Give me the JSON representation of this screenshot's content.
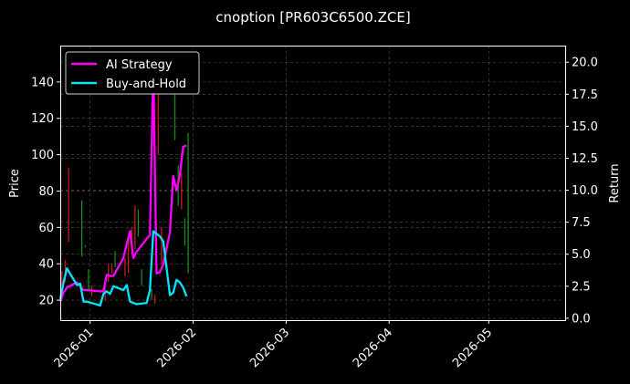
{
  "chart_data": {
    "type": "line",
    "title": "cnoption [PR603C6500.ZCE]",
    "xlabel": "",
    "ylabel_left": "Price",
    "ylabel_right": "Return",
    "x_type": "date",
    "x_range": [
      "2025-12-23",
      "2026-05-24"
    ],
    "x_ticks": [
      "2026-01",
      "2026-02",
      "2026-03",
      "2026-04",
      "2026-05"
    ],
    "ylim_left": [
      9,
      160
    ],
    "yticks_left": [
      20,
      40,
      60,
      80,
      100,
      120,
      140
    ],
    "ylim_right": [
      -0.15,
      21.3
    ],
    "yticks_right": [
      "0.0",
      "2.5",
      "5.0",
      "7.5",
      "10.0",
      "12.5",
      "15.0",
      "17.5",
      "20.0"
    ],
    "grid": true,
    "legend_position": "top-left",
    "colors": {
      "background": "#000000",
      "axis": "#ffffff",
      "grid": "#555555",
      "ai_strategy": "#ff00ff",
      "buy_and_hold": "#00e5ff",
      "candle_up": "#1a8a1a",
      "candle_down": "#cc1a1a"
    },
    "series": [
      {
        "name": "AI Strategy",
        "axis": "right",
        "x": [
          "2025-12-23",
          "2025-12-24",
          "2025-12-25",
          "2025-12-28",
          "2025-12-29",
          "2025-12-30",
          "2025-12-31",
          "2026-01-04",
          "2026-01-05",
          "2026-01-06",
          "2026-01-07",
          "2026-01-08",
          "2026-01-11",
          "2026-01-12",
          "2026-01-13",
          "2026-01-14",
          "2026-01-15",
          "2026-01-18",
          "2026-01-19",
          "2026-01-20",
          "2026-01-21",
          "2026-01-22",
          "2026-01-23",
          "2026-01-25",
          "2026-01-26",
          "2026-01-27",
          "2026-01-28",
          "2026-01-29",
          "2026-01-30"
        ],
        "values": [
          1.3,
          2.0,
          2.4,
          2.8,
          2.5,
          2.2,
          2.2,
          2.1,
          2.1,
          3.4,
          3.3,
          3.3,
          4.7,
          5.8,
          6.8,
          4.7,
          5.2,
          6.2,
          6.5,
          19.8,
          3.5,
          3.6,
          4.2,
          6.7,
          11.1,
          10.0,
          11.2,
          13.4,
          13.5
        ]
      },
      {
        "name": "Buy-and-Hold",
        "axis": "right",
        "x": [
          "2025-12-23",
          "2025-12-24",
          "2025-12-25",
          "2025-12-28",
          "2025-12-29",
          "2025-12-30",
          "2025-12-31",
          "2026-01-04",
          "2026-01-05",
          "2026-01-06",
          "2026-01-07",
          "2026-01-08",
          "2026-01-11",
          "2026-01-12",
          "2026-01-13",
          "2026-01-14",
          "2026-01-15",
          "2026-01-18",
          "2026-01-19",
          "2026-01-20",
          "2026-01-21",
          "2026-01-22",
          "2026-01-23",
          "2026-01-25",
          "2026-01-26",
          "2026-01-27",
          "2026-01-28",
          "2026-01-29",
          "2026-01-30"
        ],
        "values": [
          1.5,
          2.8,
          3.9,
          2.6,
          2.7,
          1.3,
          1.3,
          1.0,
          1.9,
          2.1,
          1.9,
          2.5,
          2.2,
          2.6,
          1.3,
          1.2,
          1.1,
          1.2,
          2.2,
          6.8,
          6.6,
          6.4,
          6.0,
          1.8,
          2.0,
          3.0,
          2.8,
          2.4,
          1.7
        ]
      }
    ],
    "candles": [
      {
        "x": "2025-12-23",
        "low": 28,
        "high": 36,
        "dir": "down"
      },
      {
        "x": "2025-12-24",
        "low": 30,
        "high": 42,
        "dir": "down"
      },
      {
        "x": "2025-12-25",
        "low": 52,
        "high": 93,
        "dir": "down"
      },
      {
        "x": "2025-12-29",
        "low": 44,
        "high": 75,
        "dir": "up"
      },
      {
        "x": "2025-12-30",
        "low": 49,
        "high": 50,
        "dir": "up"
      },
      {
        "x": "2025-12-31",
        "low": 25,
        "high": 37,
        "dir": "up"
      },
      {
        "x": "2026-01-01",
        "low": 22,
        "high": 28,
        "dir": "down"
      },
      {
        "x": "2026-01-05",
        "low": 20,
        "high": 32,
        "dir": "down"
      },
      {
        "x": "2026-01-06",
        "low": 30,
        "high": 40,
        "dir": "down"
      },
      {
        "x": "2026-01-07",
        "low": 35,
        "high": 40,
        "dir": "down"
      },
      {
        "x": "2026-01-08",
        "low": 38,
        "high": 47,
        "dir": "up"
      },
      {
        "x": "2026-01-11",
        "low": 33,
        "high": 43,
        "dir": "down"
      },
      {
        "x": "2026-01-12",
        "low": 35,
        "high": 55,
        "dir": "down"
      },
      {
        "x": "2026-01-13",
        "low": 45,
        "high": 60,
        "dir": "down"
      },
      {
        "x": "2026-01-14",
        "low": 48,
        "high": 72,
        "dir": "down"
      },
      {
        "x": "2026-01-15",
        "low": 55,
        "high": 70,
        "dir": "up"
      },
      {
        "x": "2026-01-16",
        "low": 28,
        "high": 37,
        "dir": "up"
      },
      {
        "x": "2026-01-19",
        "low": 20,
        "high": 26,
        "dir": "up"
      },
      {
        "x": "2026-01-20",
        "low": 18,
        "high": 23,
        "dir": "down"
      },
      {
        "x": "2026-01-21",
        "low": 100,
        "high": 155,
        "dir": "down"
      },
      {
        "x": "2026-01-22",
        "low": 40,
        "high": 60,
        "dir": "down"
      },
      {
        "x": "2026-01-26",
        "low": 108,
        "high": 138,
        "dir": "up"
      },
      {
        "x": "2026-01-27",
        "low": 72,
        "high": 94,
        "dir": "up"
      },
      {
        "x": "2026-01-28",
        "low": 70,
        "high": 90,
        "dir": "down"
      },
      {
        "x": "2026-01-29",
        "low": 50,
        "high": 65,
        "dir": "up"
      },
      {
        "x": "2026-01-30",
        "low": 35,
        "high": 112,
        "dir": "up"
      }
    ]
  }
}
